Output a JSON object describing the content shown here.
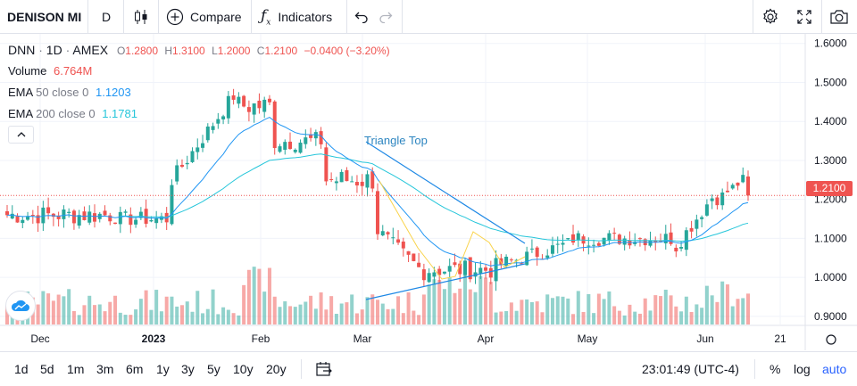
{
  "toolbar": {
    "symbol": "DENISON MI",
    "interval": "D",
    "compare_label": "Compare",
    "indicators_label": "Indicators"
  },
  "legend": {
    "ticker": "DNN",
    "interval": "1D",
    "exchange": "AMEX",
    "open_label": "O",
    "open": "1.2800",
    "high_label": "H",
    "high": "1.3100",
    "low_label": "L",
    "low": "1.2000",
    "close_label": "C",
    "close": "1.2100",
    "change": "−0.0400 (−3.20%)",
    "volume_label": "Volume",
    "volume": "6.764M",
    "ema50_label": "EMA",
    "ema50_params": "50 close 0",
    "ema50_value": "1.1203",
    "ema200_label": "EMA",
    "ema200_params": "200 close 0",
    "ema200_value": "1.1781"
  },
  "annotation": "Triangle Top",
  "last_price": "1.2100",
  "colors": {
    "up": "#26a69a",
    "down": "#ef5350",
    "ema50": "#2196f3",
    "ema200": "#26c6da"
  },
  "bottom": {
    "ranges": [
      "1d",
      "5d",
      "1m",
      "3m",
      "6m",
      "1y",
      "3y",
      "5y",
      "10y",
      "20y"
    ],
    "time": "23:01:49 (UTC-4)",
    "percent": "%",
    "log": "log",
    "auto": "auto"
  },
  "chart_data": {
    "type": "candlestick",
    "yaxis_ticks": [
      "1.6000",
      "1.5000",
      "1.4000",
      "1.3000",
      "1.2000",
      "1.1000",
      "1.0000",
      "0.9000"
    ],
    "ylim": [
      0.87,
      1.62
    ],
    "xaxis_ticks": [
      "Dec",
      "2023",
      "Feb",
      "Mar",
      "Apr",
      "May",
      "Jun",
      "21"
    ],
    "last_close": 1.21
  }
}
